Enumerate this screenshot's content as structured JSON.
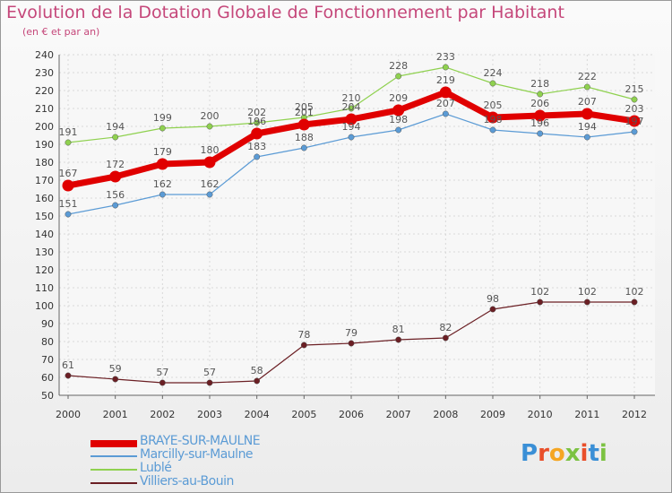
{
  "title": "Evolution de la Dotation Globale de Fonctionnement par Habitant",
  "subtitle": "(en € et par an)",
  "logo": {
    "text": "Proxiti",
    "colors": [
      "#3a8fd6",
      "#e94f2a",
      "#f5a623",
      "#7cc242",
      "#e94f2a",
      "#3a8fd6",
      "#7cc242"
    ]
  },
  "chart_data": {
    "type": "line",
    "title": "Evolution de la Dotation Globale de Fonctionnement par Habitant",
    "ylabel": "(en € et par an)",
    "ylim": [
      50,
      240
    ],
    "yticks": [
      50,
      60,
      70,
      80,
      90,
      100,
      110,
      120,
      130,
      140,
      150,
      160,
      170,
      180,
      190,
      200,
      210,
      220,
      230,
      240
    ],
    "x": [
      "2000",
      "2001",
      "2002",
      "2003",
      "2004",
      "2005",
      "2006",
      "2007",
      "2008",
      "2009",
      "2010",
      "2011",
      "2012"
    ],
    "grid": true,
    "series": [
      {
        "name": "Villiers-au-Bouin",
        "color": "#6b1f24",
        "values": [
          61,
          59,
          57,
          57,
          58,
          78,
          79,
          81,
          82,
          98,
          102,
          102,
          102
        ]
      },
      {
        "name": "Lublé",
        "color": "#8fd14f",
        "values": [
          191,
          194,
          199,
          200,
          202,
          205,
          210,
          228,
          233,
          224,
          218,
          222,
          215
        ]
      },
      {
        "name": "Marcilly-sur-Maulne",
        "color": "#5b9bd5",
        "values": [
          151,
          156,
          162,
          162,
          183,
          188,
          194,
          198,
          207,
          198,
          196,
          194,
          197
        ]
      },
      {
        "name": "BRAYE-SUR-MAULNE",
        "color": "#e00000",
        "values": [
          167,
          172,
          179,
          180,
          196,
          201,
          204,
          209,
          219,
          205,
          206,
          207,
          203
        ]
      }
    ],
    "legend": [
      {
        "name": "BRAYE-SUR-MAULNE",
        "color": "#e00000"
      },
      {
        "name": "Marcilly-sur-Maulne",
        "color": "#5b9bd5"
      },
      {
        "name": "Lublé",
        "color": "#8fd14f"
      },
      {
        "name": "Villiers-au-Bouin",
        "color": "#6b1f24"
      }
    ]
  }
}
